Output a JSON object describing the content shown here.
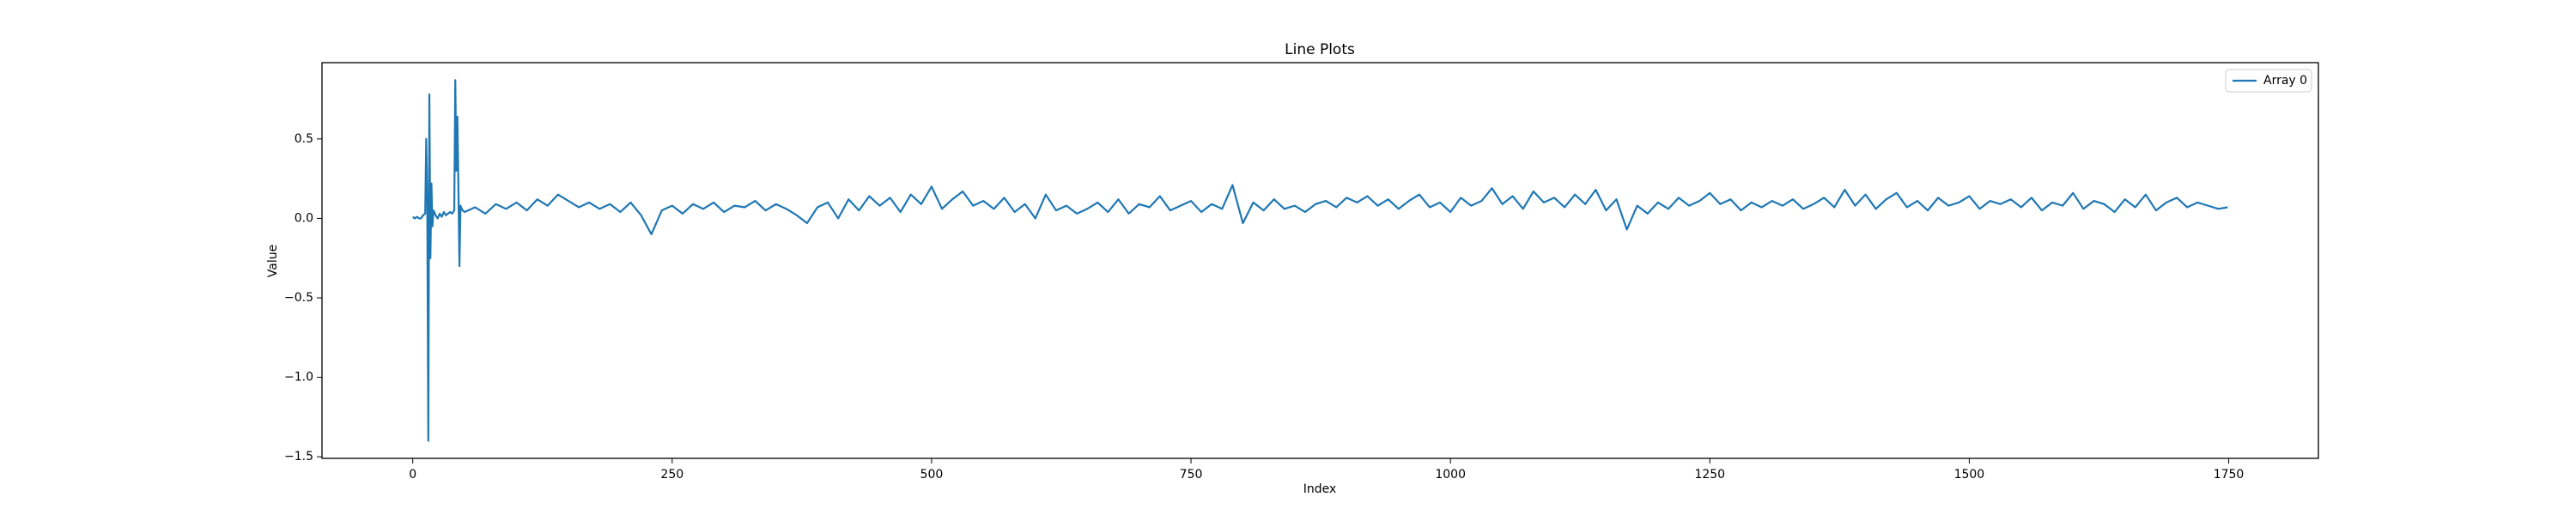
{
  "chart_data": {
    "type": "line",
    "title": "Line Plots",
    "x_label": "Index",
    "y_label": "Value",
    "legend": "upper right",
    "grid": false,
    "xlim": [
      -87.45,
      1836.45
    ],
    "ylim": [
      -1.51,
      0.98
    ],
    "xticks": [
      0,
      250,
      500,
      750,
      1000,
      1250,
      1500,
      1750
    ],
    "yticks": [
      {
        "value": -1.5,
        "label": "−1.5"
      },
      {
        "value": -1,
        "label": "−1.0"
      },
      {
        "value": -0.5,
        "label": "−0.5"
      },
      {
        "value": 0,
        "label": "0.0"
      },
      0.5
    ],
    "x": [
      0,
      2,
      4,
      6,
      8,
      10,
      12,
      13,
      14,
      15,
      16,
      17,
      18,
      19,
      20,
      22,
      24,
      26,
      28,
      30,
      32,
      34,
      36,
      38,
      40,
      41,
      42,
      43,
      44,
      45,
      46,
      48,
      50,
      60,
      70,
      80,
      90,
      100,
      110,
      120,
      130,
      140,
      150,
      160,
      170,
      180,
      190,
      200,
      210,
      220,
      230,
      240,
      250,
      260,
      270,
      280,
      290,
      300,
      310,
      320,
      330,
      340,
      350,
      360,
      370,
      380,
      390,
      400,
      410,
      420,
      430,
      440,
      450,
      460,
      470,
      480,
      490,
      500,
      510,
      520,
      530,
      540,
      550,
      560,
      570,
      580,
      590,
      600,
      610,
      620,
      630,
      640,
      650,
      660,
      670,
      680,
      690,
      700,
      710,
      720,
      730,
      740,
      750,
      760,
      770,
      780,
      790,
      800,
      810,
      820,
      830,
      840,
      850,
      860,
      870,
      880,
      890,
      900,
      910,
      920,
      930,
      940,
      950,
      960,
      970,
      980,
      990,
      1000,
      1010,
      1020,
      1030,
      1040,
      1050,
      1060,
      1070,
      1080,
      1090,
      1100,
      1110,
      1120,
      1130,
      1140,
      1150,
      1160,
      1170,
      1180,
      1190,
      1200,
      1210,
      1220,
      1230,
      1240,
      1250,
      1260,
      1270,
      1280,
      1290,
      1300,
      1310,
      1320,
      1330,
      1340,
      1350,
      1360,
      1370,
      1380,
      1390,
      1400,
      1410,
      1420,
      1430,
      1440,
      1450,
      1460,
      1470,
      1480,
      1490,
      1500,
      1510,
      1520,
      1530,
      1540,
      1550,
      1560,
      1570,
      1580,
      1590,
      1600,
      1610,
      1620,
      1630,
      1640,
      1650,
      1660,
      1670,
      1680,
      1690,
      1700,
      1710,
      1720,
      1730,
      1740,
      1749
    ],
    "series": [
      {
        "name": "Array 0",
        "color": "#1f77b4",
        "values": [
          0.01,
          0.0,
          0.01,
          0.0,
          0.0,
          0.02,
          0.03,
          0.5,
          0.1,
          -1.4,
          0.78,
          -0.25,
          0.22,
          -0.05,
          0.05,
          0.02,
          0.0,
          0.03,
          0.01,
          0.04,
          0.02,
          0.03,
          0.04,
          0.03,
          0.05,
          0.87,
          0.3,
          0.64,
          0.2,
          -0.3,
          0.08,
          0.05,
          0.04,
          0.07,
          0.03,
          0.09,
          0.06,
          0.1,
          0.05,
          0.12,
          0.08,
          0.15,
          0.11,
          0.07,
          0.1,
          0.06,
          0.09,
          0.04,
          0.1,
          0.02,
          -0.1,
          0.05,
          0.08,
          0.03,
          0.09,
          0.06,
          0.1,
          0.04,
          0.08,
          0.07,
          0.11,
          0.05,
          0.09,
          0.06,
          0.02,
          -0.03,
          0.07,
          0.1,
          0.0,
          0.12,
          0.05,
          0.14,
          0.08,
          0.13,
          0.04,
          0.15,
          0.09,
          0.2,
          0.06,
          0.12,
          0.17,
          0.08,
          0.11,
          0.06,
          0.13,
          0.04,
          0.09,
          0.0,
          0.15,
          0.05,
          0.08,
          0.03,
          0.06,
          0.1,
          0.04,
          0.12,
          0.03,
          0.09,
          0.07,
          0.14,
          0.05,
          0.08,
          0.11,
          0.04,
          0.09,
          0.06,
          0.21,
          -0.03,
          0.1,
          0.05,
          0.12,
          0.06,
          0.08,
          0.04,
          0.09,
          0.11,
          0.07,
          0.13,
          0.1,
          0.14,
          0.08,
          0.12,
          0.06,
          0.11,
          0.15,
          0.07,
          0.1,
          0.04,
          0.13,
          0.08,
          0.11,
          0.19,
          0.09,
          0.14,
          0.06,
          0.17,
          0.1,
          0.13,
          0.07,
          0.15,
          0.09,
          0.18,
          0.05,
          0.12,
          -0.07,
          0.08,
          0.03,
          0.1,
          0.06,
          0.13,
          0.08,
          0.11,
          0.16,
          0.09,
          0.12,
          0.05,
          0.1,
          0.07,
          0.11,
          0.08,
          0.12,
          0.06,
          0.09,
          0.13,
          0.07,
          0.18,
          0.08,
          0.15,
          0.06,
          0.12,
          0.16,
          0.07,
          0.11,
          0.05,
          0.13,
          0.08,
          0.1,
          0.14,
          0.06,
          0.11,
          0.09,
          0.12,
          0.07,
          0.13,
          0.05,
          0.1,
          0.08,
          0.16,
          0.06,
          0.11,
          0.09,
          0.04,
          0.12,
          0.07,
          0.15,
          0.05,
          0.1,
          0.13,
          0.07,
          0.1,
          0.08,
          0.06,
          0.07
        ]
      }
    ]
  }
}
